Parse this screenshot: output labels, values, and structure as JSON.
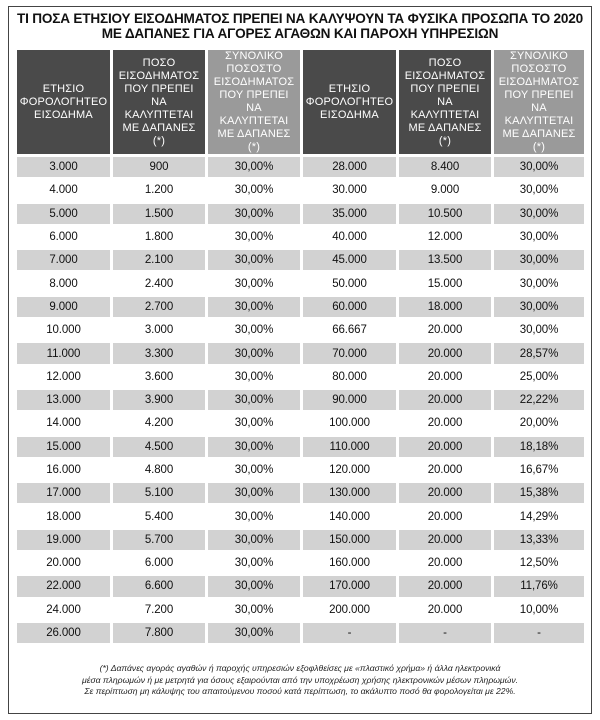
{
  "title_line1": "ΤΙ ΠΟΣΑ ΕΤΗΣΙΟΥ ΕΙΣΟΔΗΜΑΤΟΣ ΠΡΕΠΕΙ ΝΑ ΚΑΛΥΨΟΥΝ ΤΑ ΦΥΣΙΚΑ ΠΡΟΣΩΠΑ ΤΟ 2020",
  "title_line2": "ΜΕ ΔΑΠΑΝΕΣ ΓΙΑ ΑΓΟΡΕΣ ΑΓΑΘΩΝ ΚΑΙ ΠΑΡΟΧΗ ΥΠΗΡΕΣΙΩΝ",
  "headers": [
    [
      "ΕΤΗΣΙΟ",
      "ΦΟΡΟΛΟΓΗΤΕΟ",
      "ΕΙΣΟΔΗΜΑ"
    ],
    [
      "ΠΟΣΟ",
      "ΕΙΣΟΔΗΜΑΤΟΣ",
      "ΠΟΥ ΠΡΕΠΕΙ",
      "ΝΑ",
      "ΚΑΛΥΠΤΕΤΑΙ",
      "ΜΕ ΔΑΠΑΝΕΣ",
      "(*)"
    ],
    [
      "ΣΥΝΟΛΙΚΟ",
      "ΠΟΣΟΣΤΟ",
      "ΕΙΣΟΔΗΜΑΤΟΣ",
      "ΠΟΥ ΠΡΕΠΕΙ ΝΑ",
      "ΚΑΛΥΠΤΕΤΑΙ",
      "ΜΕ ΔΑΠΑΝΕΣ",
      "(*)"
    ],
    [
      "ΕΤΗΣΙΟ",
      "ΦΟΡΟΛΟΓΗΤΕΟ",
      "ΕΙΣΟΔΗΜΑ"
    ],
    [
      "ΠΟΣΟ",
      "ΕΙΣΟΔΗΜΑΤΟΣ",
      "ΠΟΥ ΠΡΕΠΕΙ",
      "ΝΑ",
      "ΚΑΛΥΠΤΕΤΑΙ",
      "ΜΕ ΔΑΠΑΝΕΣ",
      "(*)"
    ],
    [
      "ΣΥΝΟΛΙΚΟ",
      "ΠΟΣΟΣΤΟ",
      "ΕΙΣΟΔΗΜΑΤΟΣ",
      "ΠΟΥ ΠΡΕΠΕΙ ΝΑ",
      "ΚΑΛΥΠΤΕΤΑΙ",
      "ΜΕ ΔΑΠΑΝΕΣ",
      "(*)"
    ]
  ],
  "rows": [
    [
      "3.000",
      "900",
      "30,00%",
      "28.000",
      "8.400",
      "30,00%"
    ],
    [
      "4.000",
      "1.200",
      "30,00%",
      "30.000",
      "9.000",
      "30,00%"
    ],
    [
      "5.000",
      "1.500",
      "30,00%",
      "35.000",
      "10.500",
      "30,00%"
    ],
    [
      "6.000",
      "1.800",
      "30,00%",
      "40.000",
      "12.000",
      "30,00%"
    ],
    [
      "7.000",
      "2.100",
      "30,00%",
      "45.000",
      "13.500",
      "30,00%"
    ],
    [
      "8.000",
      "2.400",
      "30,00%",
      "50.000",
      "15.000",
      "30,00%"
    ],
    [
      "9.000",
      "2.700",
      "30,00%",
      "60.000",
      "18.000",
      "30,00%"
    ],
    [
      "10.000",
      "3.000",
      "30,00%",
      "66.667",
      "20.000",
      "30,00%"
    ],
    [
      "11.000",
      "3.300",
      "30,00%",
      "70.000",
      "20.000",
      "28,57%"
    ],
    [
      "12.000",
      "3.600",
      "30,00%",
      "80.000",
      "20.000",
      "25,00%"
    ],
    [
      "13.000",
      "3.900",
      "30,00%",
      "90.000",
      "20.000",
      "22,22%"
    ],
    [
      "14.000",
      "4.200",
      "30,00%",
      "100.000",
      "20.000",
      "20,00%"
    ],
    [
      "15.000",
      "4.500",
      "30,00%",
      "110.000",
      "20.000",
      "18,18%"
    ],
    [
      "16.000",
      "4.800",
      "30,00%",
      "120.000",
      "20.000",
      "16,67%"
    ],
    [
      "17.000",
      "5.100",
      "30,00%",
      "130.000",
      "20.000",
      "15,38%"
    ],
    [
      "18.000",
      "5.400",
      "30,00%",
      "140.000",
      "20.000",
      "14,29%"
    ],
    [
      "19.000",
      "5.700",
      "30,00%",
      "150.000",
      "20.000",
      "13,33%"
    ],
    [
      "20.000",
      "6.000",
      "30,00%",
      "160.000",
      "20.000",
      "12,50%"
    ],
    [
      "22.000",
      "6.600",
      "30,00%",
      "170.000",
      "20.000",
      "11,76%"
    ],
    [
      "24.000",
      "7.200",
      "30,00%",
      "200.000",
      "20.000",
      "10,00%"
    ],
    [
      "26.000",
      "7.800",
      "30,00%",
      "-",
      "-",
      "-"
    ]
  ],
  "note_line1": "(*) Δαπάνες αγοράς αγαθών ή παροχής υπηρεσιών εξοφλθείσες με «πλαστικό χρήμα» ή άλλα ηλεκτρονικά",
  "note_line2": "μέσα πληρωμών ή με μετρητά για όσους εξαιρούνται από την υποχρέωση χρήσης ηλεκτρονικών μέσων πληρωμών.",
  "note_line3": "Σε περίπτωση μη κάλυψης του απαιτούμενου ποσού κατά περίπτωση, το ακάλυπτο ποσό θα φορολογείται με 22%.",
  "colors": {
    "header_dark": "#4a4a4a",
    "header_light": "#9a9a9a",
    "row_shaded": "#d2d2d2",
    "row_plain": "#ffffff"
  }
}
